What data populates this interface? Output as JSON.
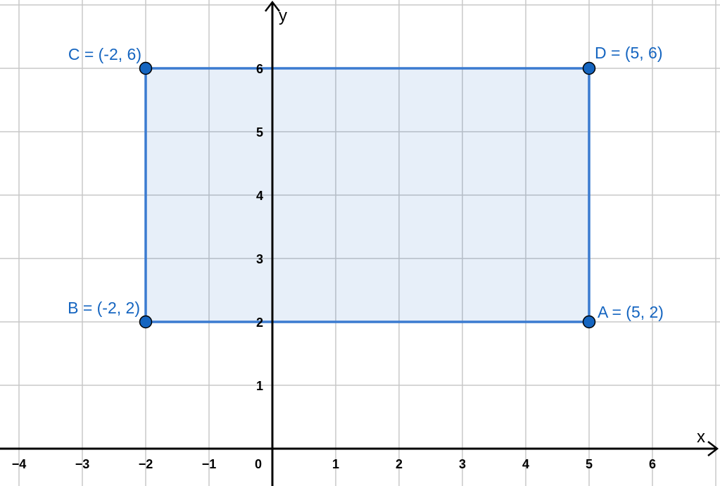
{
  "axes": {
    "x_label": "x",
    "y_label": "y",
    "x_range": [
      -4,
      7
    ],
    "y_range": [
      0,
      7
    ],
    "origin_label": "0",
    "grid": true
  },
  "x_ticks": [
    "−4",
    "−3",
    "−2",
    "−1",
    "1",
    "2",
    "3",
    "4",
    "5",
    "6"
  ],
  "x_tick_values": [
    -4,
    -3,
    -2,
    -1,
    1,
    2,
    3,
    4,
    5,
    6
  ],
  "y_ticks": [
    "1",
    "2",
    "3",
    "4",
    "5",
    "6"
  ],
  "y_tick_values": [
    1,
    2,
    3,
    4,
    5,
    6
  ],
  "polygon": {
    "vertices": [
      "A",
      "D",
      "C",
      "B"
    ],
    "fill": "#1565c0",
    "stroke": "#3b7bd0"
  },
  "points": [
    {
      "name": "A",
      "x": 5,
      "y": 2,
      "label": "A = (5, 2)"
    },
    {
      "name": "B",
      "x": -2,
      "y": 2,
      "label": "B = (-2, 2)"
    },
    {
      "name": "C",
      "x": -2,
      "y": 6,
      "label": "C = (-2, 6)"
    },
    {
      "name": "D",
      "x": 5,
      "y": 6,
      "label": "D = (5, 6)"
    }
  ],
  "colors": {
    "point": "#1565c0",
    "label": "#1565c0",
    "grid": "#c8c8c8",
    "axis": "#000000"
  }
}
